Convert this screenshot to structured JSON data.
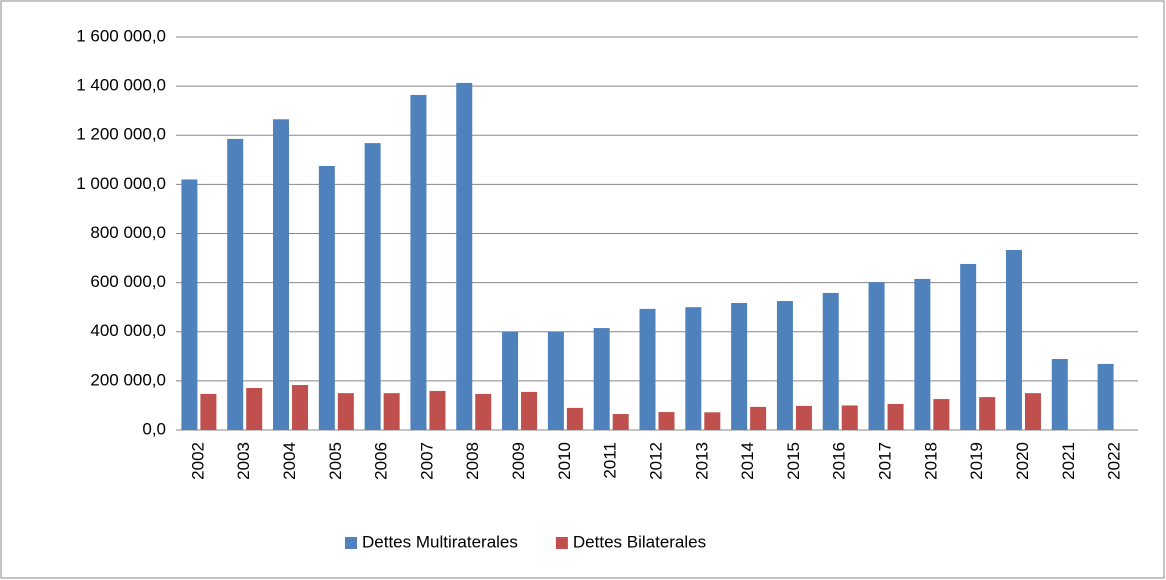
{
  "chart_data": {
    "type": "bar",
    "categories": [
      "2002",
      "2003",
      "2004",
      "2005",
      "2006",
      "2007",
      "2008",
      "2009",
      "2010",
      "2011",
      "2012",
      "2013",
      "2014",
      "2015",
      "2016",
      "2017",
      "2018",
      "2019",
      "2020",
      "2021",
      "2022"
    ],
    "series": [
      {
        "name": "Dettes Multiraterales",
        "color": "#4f81bd",
        "values": [
          1020000,
          1185000,
          1265000,
          1075000,
          1168000,
          1364000,
          1413000,
          399000,
          400000,
          415000,
          493000,
          500000,
          517000,
          525000,
          558000,
          602000,
          615000,
          676000,
          733000,
          289000,
          269000
        ]
      },
      {
        "name": "Dettes Bilaterales",
        "color": "#c0504d",
        "values": [
          147000,
          171000,
          183000,
          150000,
          150000,
          159000,
          147000,
          155000,
          90000,
          65000,
          73000,
          72000,
          94000,
          98000,
          100000,
          106000,
          126000,
          134000,
          150000,
          null,
          null
        ]
      }
    ],
    "ylim": [
      0,
      1600000
    ],
    "yticks": [
      {
        "value": 0,
        "label": "0,0"
      },
      {
        "value": 200000,
        "label": "200 000,0"
      },
      {
        "value": 400000,
        "label": "400 000,0"
      },
      {
        "value": 600000,
        "label": "600 000,0"
      },
      {
        "value": 800000,
        "label": "800 000,0"
      },
      {
        "value": 1000000,
        "label": "1 000 000,0"
      },
      {
        "value": 1200000,
        "label": "1 200 000,0"
      },
      {
        "value": 1400000,
        "label": "1 400 000,0"
      },
      {
        "value": 1600000,
        "label": "1 600 000,0"
      }
    ],
    "grid": true,
    "legend": "bottom"
  }
}
